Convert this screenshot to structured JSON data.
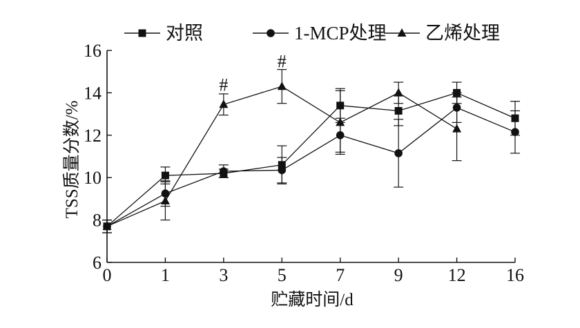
{
  "chart_data": {
    "type": "line",
    "title": "",
    "xlabel": "贮藏时间/d",
    "ylabel": "TSS质量分数/%",
    "categories": [
      "0",
      "1",
      "3",
      "5",
      "7",
      "9",
      "12",
      "16"
    ],
    "ylim": [
      6,
      16
    ],
    "yticks": [
      "6",
      "8",
      "10",
      "12",
      "14",
      "16"
    ],
    "legend_position": "top",
    "grid": false,
    "series": [
      {
        "name": "对照",
        "marker": "square",
        "values": [
          7.7,
          10.1,
          10.2,
          10.6,
          13.4,
          13.15,
          14.0,
          12.8
        ],
        "errors": [
          0.3,
          0.4,
          0.2,
          0.9,
          0.8,
          0.7,
          0.5,
          0.8
        ]
      },
      {
        "name": "1-MCP处理",
        "marker": "circle",
        "values": [
          7.7,
          9.25,
          10.3,
          10.35,
          12.0,
          11.15,
          13.3,
          12.15
        ],
        "errors": [
          0.3,
          0.6,
          0.3,
          0.6,
          0.8,
          1.6,
          0.7,
          1.0
        ]
      },
      {
        "name": "乙烯处理",
        "marker": "triangle",
        "values": [
          7.7,
          8.9,
          13.45,
          14.3,
          12.6,
          14.0,
          12.3,
          null
        ],
        "errors": [
          0.3,
          0.9,
          0.5,
          0.8,
          1.5,
          0.5,
          1.5,
          null
        ]
      }
    ],
    "annotations": [
      {
        "text": "#",
        "category": "3",
        "y": 14.1
      },
      {
        "text": "#",
        "category": "5",
        "y": 15.2
      }
    ]
  }
}
